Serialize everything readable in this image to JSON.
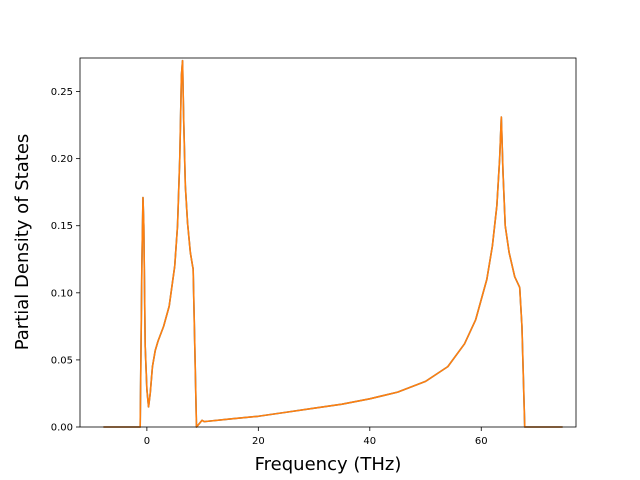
{
  "chart_data": {
    "type": "line",
    "title": "",
    "xlabel": "Frequency (THz)",
    "ylabel": "Partial Density of States",
    "xlim": [
      -12,
      77
    ],
    "ylim": [
      0.0,
      0.275
    ],
    "xticks": [
      0,
      20,
      40,
      60
    ],
    "xtick_labels": [
      "0",
      "20",
      "40",
      "60"
    ],
    "yticks": [
      0.0,
      0.05,
      0.1,
      0.15,
      0.2,
      0.25
    ],
    "ytick_labels": [
      "0.00",
      "0.05",
      "0.10",
      "0.15",
      "0.20",
      "0.25"
    ],
    "grid": false,
    "series": [
      {
        "color": "#1f77b4",
        "x": [
          -7.8,
          -1.2,
          -0.9,
          -0.7,
          -0.55,
          -0.3,
          0.0,
          0.3,
          0.6,
          1.0,
          1.5,
          2.0,
          3.0,
          4.0,
          5.0,
          5.5,
          5.9,
          6.2,
          6.4,
          6.6,
          6.9,
          7.3,
          7.8,
          8.2,
          8.3,
          8.6,
          8.9,
          9.5,
          9.9,
          10.3,
          15,
          20,
          25,
          30,
          35,
          40,
          45,
          50,
          54,
          57,
          59,
          61,
          62,
          62.8,
          63.3,
          63.6,
          63.9,
          64.3,
          65,
          66,
          66.9,
          67.3,
          67.8,
          74.6
        ],
        "y": [
          0.0,
          0.0,
          0.12,
          0.171,
          0.15,
          0.06,
          0.028,
          0.015,
          0.025,
          0.045,
          0.057,
          0.064,
          0.075,
          0.09,
          0.12,
          0.15,
          0.2,
          0.262,
          0.273,
          0.23,
          0.18,
          0.152,
          0.13,
          0.12,
          0.118,
          0.06,
          0.0,
          0.003,
          0.005,
          0.004,
          0.006,
          0.008,
          0.011,
          0.014,
          0.017,
          0.021,
          0.026,
          0.034,
          0.045,
          0.062,
          0.08,
          0.11,
          0.135,
          0.165,
          0.2,
          0.231,
          0.19,
          0.15,
          0.13,
          0.112,
          0.104,
          0.075,
          0.0,
          0.0
        ]
      },
      {
        "color": "#ff7f0e",
        "x": [
          -7.8,
          -1.2,
          -0.9,
          -0.7,
          -0.55,
          -0.3,
          0.0,
          0.3,
          0.6,
          1.0,
          1.5,
          2.0,
          3.0,
          4.0,
          5.0,
          5.5,
          5.9,
          6.2,
          6.4,
          6.6,
          6.9,
          7.3,
          7.8,
          8.2,
          8.3,
          8.6,
          8.9,
          9.5,
          9.9,
          10.3,
          15,
          20,
          25,
          30,
          35,
          40,
          45,
          50,
          54,
          57,
          59,
          61,
          62,
          62.8,
          63.3,
          63.6,
          63.9,
          64.3,
          65,
          66,
          66.9,
          67.3,
          67.8,
          74.6
        ],
        "y": [
          0.0,
          0.0,
          0.12,
          0.171,
          0.15,
          0.06,
          0.028,
          0.015,
          0.025,
          0.045,
          0.057,
          0.064,
          0.075,
          0.09,
          0.12,
          0.15,
          0.2,
          0.262,
          0.273,
          0.23,
          0.18,
          0.152,
          0.13,
          0.12,
          0.118,
          0.06,
          0.0,
          0.003,
          0.005,
          0.004,
          0.006,
          0.008,
          0.011,
          0.014,
          0.017,
          0.021,
          0.026,
          0.034,
          0.045,
          0.062,
          0.08,
          0.11,
          0.135,
          0.165,
          0.2,
          0.231,
          0.19,
          0.15,
          0.13,
          0.112,
          0.104,
          0.075,
          0.0,
          0.0
        ]
      }
    ]
  }
}
